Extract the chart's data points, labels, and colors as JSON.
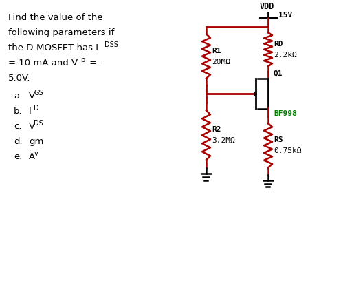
{
  "bg_color": "#ffffff",
  "text_color": "#000000",
  "circuit_color": "#aa0000",
  "green_color": "#008000",
  "vdd_label": "VDD",
  "vdd_value": "15V",
  "rd_label": "RD",
  "rd_value": "2.2kΩ",
  "r1_label": "R1",
  "r1_value": "20MΩ",
  "r2_label": "R2",
  "r2_value": "3.2MΩ",
  "rs_label": "RS",
  "rs_value": "0.75kΩ",
  "q1_label": "Q1",
  "q1_model": "BF998",
  "prob_lines": [
    "Find the value of the",
    "following parameters if",
    "the D-MOSFET has IDSS",
    "= 10 mA and Vp = -",
    "5.0V."
  ],
  "items": [
    [
      "a.",
      "VGS"
    ],
    [
      "b.",
      "ID"
    ],
    [
      "c.",
      "VDS"
    ],
    [
      "d.",
      "gm"
    ],
    [
      "e.",
      "Av"
    ]
  ]
}
